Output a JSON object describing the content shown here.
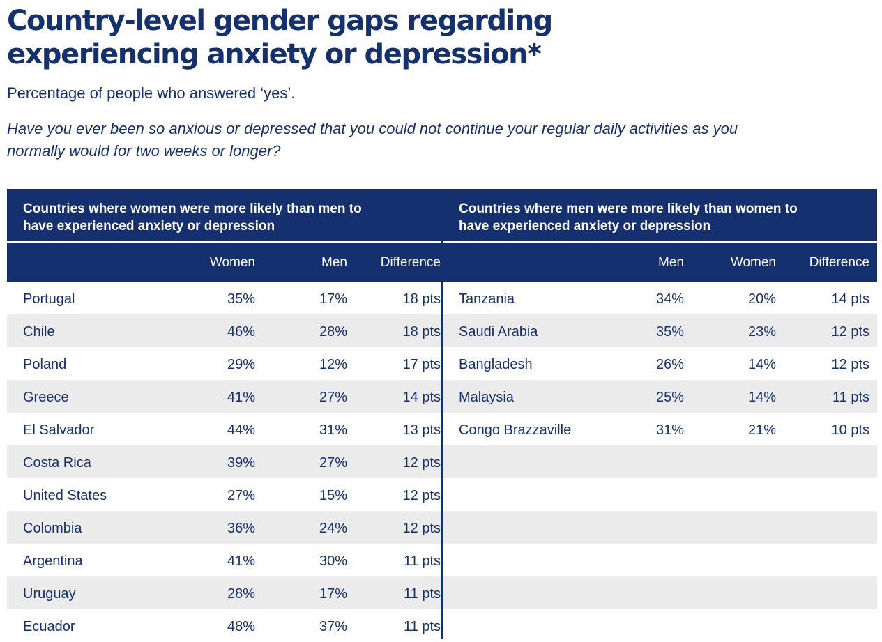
{
  "header": {
    "title_line1": "Country-level gender gaps regarding",
    "title_line2": "experiencing anxiety or depression*",
    "subtitle": "Percentage of people who answered ‘yes’.",
    "question_line1": "Have you ever been so anxious or depressed that you could not continue your regular daily activities as you",
    "question_line2": "normally would for two weeks or longer?"
  },
  "chart_data": {
    "type": "table",
    "tables": [
      {
        "heading_line1": "Countries where women were more likely than men to",
        "heading_line2": "have experienced anxiety or depression",
        "columns": [
          "Women",
          "Men",
          "Difference"
        ],
        "rows": [
          [
            "Portugal",
            "35%",
            "17%",
            "18 pts"
          ],
          [
            "Chile",
            "46%",
            "28%",
            "18 pts"
          ],
          [
            "Poland",
            "29%",
            "12%",
            "17 pts"
          ],
          [
            "Greece",
            "41%",
            "27%",
            "14 pts"
          ],
          [
            "El Salvador",
            "44%",
            "31%",
            "13 pts"
          ],
          [
            "Costa Rica",
            "39%",
            "27%",
            "12 pts"
          ],
          [
            "United States",
            "27%",
            "15%",
            "12 pts"
          ],
          [
            "Colombia",
            "36%",
            "24%",
            "12 pts"
          ],
          [
            "Argentina",
            "41%",
            "30%",
            "11 pts"
          ],
          [
            "Uruguay",
            "28%",
            "17%",
            "11 pts"
          ],
          [
            "Ecuador",
            "48%",
            "37%",
            "11 pts"
          ]
        ]
      },
      {
        "heading_line1": "Countries where men were more likely than women to",
        "heading_line2": "have experienced anxiety or depression",
        "columns": [
          "Men",
          "Women",
          "Difference"
        ],
        "rows": [
          [
            "Tanzania",
            "34%",
            "20%",
            "14 pts"
          ],
          [
            "Saudi Arabia",
            "35%",
            "23%",
            "12 pts"
          ],
          [
            "Bangladesh",
            "26%",
            "14%",
            "12 pts"
          ],
          [
            "Malaysia",
            "25%",
            "14%",
            "11 pts"
          ],
          [
            "Congo Brazzaville",
            "31%",
            "21%",
            "10 pts"
          ]
        ]
      }
    ]
  },
  "colors": {
    "navy": "#14306e",
    "stripe": "#ebebeb"
  }
}
